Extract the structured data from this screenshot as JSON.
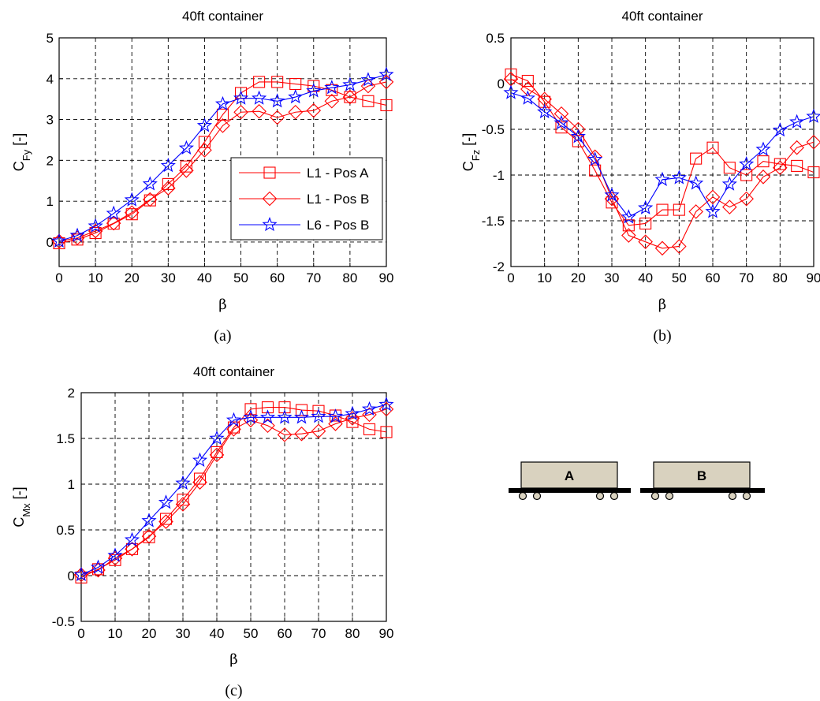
{
  "chart_data": [
    {
      "type": "line",
      "title": "40ft container",
      "xlabel": "β",
      "ylabel": "C_Fy [-]",
      "ylabel_main": "C",
      "ylabel_sub": "Fy",
      "ylabel_unit": " [-]",
      "panel_label": "(a)",
      "xlim": [
        0,
        90
      ],
      "ylim": [
        -0.6,
        5
      ],
      "xticks": [
        0,
        10,
        20,
        30,
        40,
        50,
        60,
        70,
        80,
        90
      ],
      "yticks": [
        0,
        1,
        2,
        3,
        4,
        5
      ],
      "grid": true,
      "legend": "center-right",
      "series": [
        {
          "name": "L1 - Pos A",
          "color": "#ff0000",
          "marker": "square",
          "x": [
            0,
            5,
            10,
            15,
            20,
            25,
            30,
            35,
            40,
            45,
            50,
            55,
            60,
            65,
            70,
            75,
            80,
            85,
            90
          ],
          "y": [
            -0.03,
            0.06,
            0.22,
            0.45,
            0.68,
            1.02,
            1.42,
            1.85,
            2.45,
            3.12,
            3.65,
            3.92,
            3.92,
            3.87,
            3.82,
            3.72,
            3.55,
            3.45,
            3.35
          ]
        },
        {
          "name": "L1 - Pos B",
          "color": "#ff0000",
          "marker": "diamond",
          "x": [
            0,
            5,
            10,
            15,
            20,
            25,
            30,
            35,
            40,
            45,
            50,
            55,
            60,
            65,
            70,
            75,
            80,
            85,
            90
          ],
          "y": [
            0.02,
            0.1,
            0.27,
            0.46,
            0.72,
            1.04,
            1.32,
            1.75,
            2.25,
            2.85,
            3.18,
            3.2,
            3.05,
            3.18,
            3.22,
            3.45,
            3.55,
            3.82,
            3.92
          ]
        },
        {
          "name": "L6 - Pos B",
          "color": "#0000ff",
          "marker": "star",
          "x": [
            0,
            5,
            10,
            15,
            20,
            25,
            30,
            35,
            40,
            45,
            50,
            55,
            60,
            65,
            70,
            75,
            80,
            85,
            90
          ],
          "y": [
            0.02,
            0.16,
            0.39,
            0.7,
            1.03,
            1.42,
            1.87,
            2.3,
            2.85,
            3.38,
            3.52,
            3.52,
            3.45,
            3.55,
            3.7,
            3.78,
            3.85,
            3.97,
            4.1
          ]
        }
      ],
      "legend_entries": [
        "L1 - Pos A",
        "L1 - Pos B",
        "L6 - Pos B"
      ]
    },
    {
      "type": "line",
      "title": "40ft container",
      "xlabel": "β",
      "ylabel": "C_Fz [-]",
      "ylabel_main": "C",
      "ylabel_sub": "Fz",
      "ylabel_unit": " [-]",
      "panel_label": "(b)",
      "xlim": [
        0,
        90
      ],
      "ylim": [
        -2,
        0.5
      ],
      "xticks": [
        0,
        10,
        20,
        30,
        40,
        50,
        60,
        70,
        80,
        90
      ],
      "yticks": [
        -2,
        -1.5,
        -1,
        -0.5,
        0,
        0.5
      ],
      "ytick_labels": [
        "-2",
        "-1.5",
        "-1",
        "-0.5",
        "0",
        "0.5"
      ],
      "grid": true,
      "series": [
        {
          "name": "L1 - Pos A",
          "color": "#ff0000",
          "marker": "square",
          "x": [
            0,
            5,
            10,
            15,
            20,
            25,
            30,
            35,
            40,
            45,
            50,
            55,
            60,
            65,
            70,
            75,
            80,
            85,
            90
          ],
          "y": [
            0.1,
            0.03,
            -0.2,
            -0.48,
            -0.63,
            -0.95,
            -1.3,
            -1.55,
            -1.53,
            -1.38,
            -1.38,
            -0.82,
            -0.7,
            -0.92,
            -1.0,
            -0.85,
            -0.88,
            -0.9,
            -0.97
          ]
        },
        {
          "name": "L1 - Pos B",
          "color": "#ff0000",
          "marker": "diamond",
          "x": [
            0,
            5,
            10,
            15,
            20,
            25,
            30,
            35,
            40,
            45,
            50,
            55,
            60,
            65,
            70,
            75,
            80,
            85,
            90
          ],
          "y": [
            0.05,
            -0.06,
            -0.17,
            -0.33,
            -0.5,
            -0.8,
            -1.26,
            -1.66,
            -1.73,
            -1.8,
            -1.78,
            -1.4,
            -1.24,
            -1.35,
            -1.26,
            -1.02,
            -0.92,
            -0.7,
            -0.64
          ]
        },
        {
          "name": "L6 - Pos B",
          "color": "#0000ff",
          "marker": "star",
          "x": [
            0,
            5,
            10,
            15,
            20,
            25,
            30,
            35,
            40,
            45,
            50,
            55,
            60,
            65,
            70,
            75,
            80,
            85,
            90
          ],
          "y": [
            -0.1,
            -0.16,
            -0.31,
            -0.43,
            -0.58,
            -0.83,
            -1.22,
            -1.46,
            -1.36,
            -1.05,
            -1.03,
            -1.09,
            -1.4,
            -1.1,
            -0.88,
            -0.72,
            -0.51,
            -0.42,
            -0.36
          ]
        }
      ]
    },
    {
      "type": "line",
      "title": "40ft container",
      "xlabel": "β",
      "ylabel": "C_Mx [-]",
      "ylabel_main": "C",
      "ylabel_sub": "Mx",
      "ylabel_unit": " [-]",
      "panel_label": "(c)",
      "xlim": [
        0,
        90
      ],
      "ylim": [
        -0.5,
        2
      ],
      "xticks": [
        0,
        10,
        20,
        30,
        40,
        50,
        60,
        70,
        80,
        90
      ],
      "yticks": [
        -0.5,
        0,
        0.5,
        1,
        1.5,
        2
      ],
      "ytick_labels": [
        "-0.5",
        "0",
        "0.5",
        "1",
        "1.5",
        "2"
      ],
      "grid": true,
      "series": [
        {
          "name": "L1 - Pos A",
          "color": "#ff0000",
          "marker": "square",
          "x": [
            0,
            5,
            10,
            15,
            20,
            25,
            30,
            35,
            40,
            45,
            50,
            55,
            60,
            65,
            70,
            75,
            80,
            85,
            90
          ],
          "y": [
            -0.02,
            0.07,
            0.17,
            0.29,
            0.42,
            0.62,
            0.83,
            1.06,
            1.35,
            1.62,
            1.82,
            1.84,
            1.84,
            1.81,
            1.8,
            1.75,
            1.68,
            1.6,
            1.57
          ]
        },
        {
          "name": "L1 - Pos B",
          "color": "#ff0000",
          "marker": "diamond",
          "x": [
            0,
            5,
            10,
            15,
            20,
            25,
            30,
            35,
            40,
            45,
            50,
            55,
            60,
            65,
            70,
            75,
            80,
            85,
            90
          ],
          "y": [
            0.01,
            0.06,
            0.19,
            0.29,
            0.43,
            0.59,
            0.78,
            1.02,
            1.32,
            1.6,
            1.7,
            1.64,
            1.54,
            1.55,
            1.58,
            1.66,
            1.72,
            1.76,
            1.82
          ]
        },
        {
          "name": "L6 - Pos B",
          "color": "#0000ff",
          "marker": "star",
          "x": [
            0,
            5,
            10,
            15,
            20,
            25,
            30,
            35,
            40,
            45,
            50,
            55,
            60,
            65,
            70,
            75,
            80,
            85,
            90
          ],
          "y": [
            0.01,
            0.09,
            0.22,
            0.39,
            0.6,
            0.8,
            1.01,
            1.26,
            1.5,
            1.7,
            1.73,
            1.73,
            1.73,
            1.73,
            1.74,
            1.74,
            1.77,
            1.82,
            1.87
          ]
        }
      ]
    }
  ],
  "diagram": {
    "wagon_labels": [
      "A",
      "B"
    ],
    "container_color": "#d9d2bf",
    "rail_color": "#000000"
  }
}
